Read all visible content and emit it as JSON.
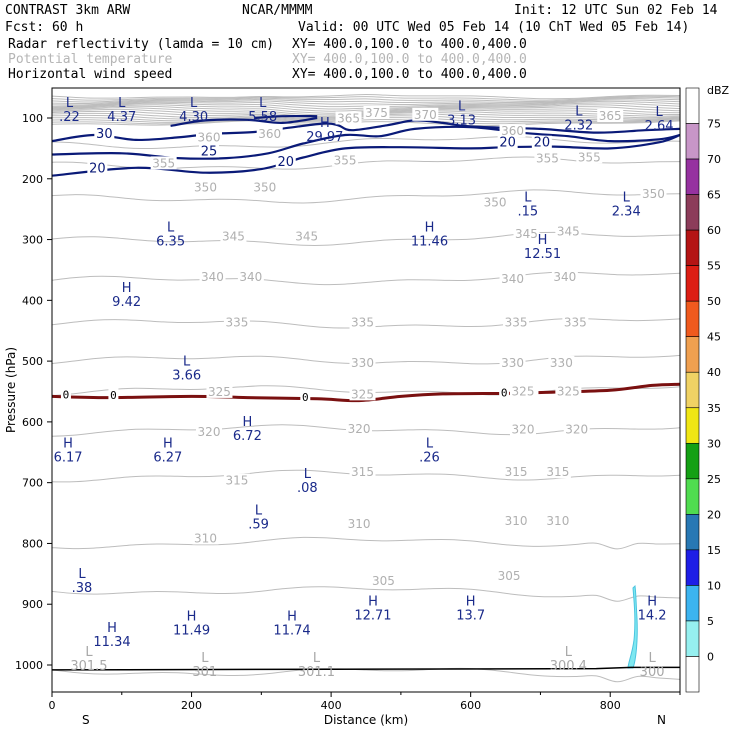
{
  "header": {
    "model": "CONTRAST  3km ARW",
    "org": "NCAR/MMMM",
    "init": "Init: 12 UTC Sun 02 Feb 14",
    "fcst": "Fcst:   60 h",
    "valid": "Valid: 00 UTC Wed 05 Feb 14 (10 ChT Wed 05 Feb 14)",
    "field1": "Radar reflectivity (lamda = 10 cm)",
    "xy1": "XY= 400.0,100.0 to 400.0,400.0",
    "field2": "Potential temperature",
    "xy2": "XY= 400.0,100.0 to 400.0,400.0",
    "field3": "Horizontal wind speed",
    "xy3": "XY= 400.0,100.0 to 400.0,400.0"
  },
  "colors": {
    "theta": "#bdbdbd",
    "wind": "#0a1a78",
    "zero_line": "#7a1010",
    "terrain": "#000000"
  },
  "chart_data": {
    "type": "cross-section",
    "xlabel": "Distance (km)",
    "ylabel": "Pressure (hPa)",
    "xlim": [
      0,
      900
    ],
    "ylim": [
      1050,
      60
    ],
    "x_ticks": [
      0,
      200,
      400,
      600,
      800
    ],
    "y_ticks": [
      100,
      200,
      300,
      400,
      500,
      600,
      700,
      800,
      900,
      1000
    ],
    "endpoint_labels": {
      "left": "S",
      "right": "N"
    },
    "colorbar": {
      "unit": "dBZ",
      "levels": [
        75,
        70,
        65,
        60,
        55,
        50,
        45,
        40,
        35,
        30,
        25,
        20,
        15,
        10,
        5,
        0
      ],
      "colors": [
        "#ffffff",
        "#c896c8",
        "#9632a0",
        "#8c3c5a",
        "#b41414",
        "#dc1e14",
        "#f05a1e",
        "#f0a050",
        "#f0d264",
        "#f0e614",
        "#14a014",
        "#50dc50",
        "#2878b4",
        "#1e1ee6",
        "#3cb4f0",
        "#96f0f0",
        "#ffffff"
      ]
    },
    "theta_levels": [
      {
        "value": 300,
        "p": 1008
      },
      {
        "value": 305,
        "p": 875
      },
      {
        "value": 310,
        "p": 800
      },
      {
        "value": 315,
        "p": 690
      },
      {
        "value": 320,
        "p": 615
      },
      {
        "value": 325,
        "p": 550
      },
      {
        "value": 330,
        "p": 500
      },
      {
        "value": 335,
        "p": 440
      },
      {
        "value": 340,
        "p": 370
      },
      {
        "value": 345,
        "p": 305
      },
      {
        "value": 350,
        "p": 235
      },
      {
        "value": 355,
        "p": 180
      },
      {
        "value": 360,
        "p": 145
      }
    ],
    "theta_labels": [
      {
        "text": "375",
        "x": 465,
        "p": 95
      },
      {
        "text": "370",
        "x": 535,
        "p": 98
      },
      {
        "text": "365",
        "x": 800,
        "p": 100
      },
      {
        "text": "365",
        "x": 425,
        "p": 104
      },
      {
        "text": "360",
        "x": 225,
        "p": 135
      },
      {
        "text": "360",
        "x": 312,
        "p": 130
      },
      {
        "text": "360",
        "x": 660,
        "p": 125
      },
      {
        "text": "355",
        "x": 160,
        "p": 178
      },
      {
        "text": "355",
        "x": 420,
        "p": 173
      },
      {
        "text": "355",
        "x": 710,
        "p": 170
      },
      {
        "text": "355",
        "x": 770,
        "p": 168
      },
      {
        "text": "350",
        "x": 220,
        "p": 218
      },
      {
        "text": "350",
        "x": 305,
        "p": 218
      },
      {
        "text": "350",
        "x": 635,
        "p": 242
      },
      {
        "text": "350",
        "x": 862,
        "p": 228
      },
      {
        "text": "345",
        "x": 260,
        "p": 298
      },
      {
        "text": "345",
        "x": 365,
        "p": 298
      },
      {
        "text": "345",
        "x": 680,
        "p": 294
      },
      {
        "text": "345",
        "x": 740,
        "p": 290
      },
      {
        "text": "340",
        "x": 230,
        "p": 365
      },
      {
        "text": "340",
        "x": 285,
        "p": 365
      },
      {
        "text": "340",
        "x": 660,
        "p": 368
      },
      {
        "text": "340",
        "x": 735,
        "p": 365
      },
      {
        "text": "335",
        "x": 265,
        "p": 440
      },
      {
        "text": "335",
        "x": 445,
        "p": 440
      },
      {
        "text": "335",
        "x": 665,
        "p": 440
      },
      {
        "text": "335",
        "x": 750,
        "p": 440
      },
      {
        "text": "330",
        "x": 445,
        "p": 506
      },
      {
        "text": "330",
        "x": 660,
        "p": 506
      },
      {
        "text": "330",
        "x": 730,
        "p": 506
      },
      {
        "text": "325",
        "x": 240,
        "p": 554
      },
      {
        "text": "325",
        "x": 445,
        "p": 558
      },
      {
        "text": "325",
        "x": 675,
        "p": 553
      },
      {
        "text": "325",
        "x": 740,
        "p": 553
      },
      {
        "text": "320",
        "x": 225,
        "p": 620
      },
      {
        "text": "320",
        "x": 440,
        "p": 615
      },
      {
        "text": "320",
        "x": 675,
        "p": 616
      },
      {
        "text": "320",
        "x": 752,
        "p": 616
      },
      {
        "text": "315",
        "x": 265,
        "p": 700
      },
      {
        "text": "315",
        "x": 445,
        "p": 686
      },
      {
        "text": "315",
        "x": 665,
        "p": 686
      },
      {
        "text": "315",
        "x": 725,
        "p": 686
      },
      {
        "text": "310",
        "x": 220,
        "p": 795
      },
      {
        "text": "310",
        "x": 440,
        "p": 771
      },
      {
        "text": "310",
        "x": 665,
        "p": 766
      },
      {
        "text": "310",
        "x": 725,
        "p": 766
      },
      {
        "text": "305",
        "x": 475,
        "p": 865
      },
      {
        "text": "305",
        "x": 655,
        "p": 857
      }
    ],
    "wind_contours": [
      {
        "value": 20,
        "points": [
          [
            0,
            195
          ],
          [
            120,
            182
          ],
          [
            220,
            190
          ],
          [
            300,
            184
          ],
          [
            360,
            165
          ],
          [
            420,
            150
          ],
          [
            500,
            148
          ],
          [
            600,
            150
          ],
          [
            650,
            148
          ],
          [
            720,
            147
          ],
          [
            800,
            150
          ],
          [
            870,
            140
          ],
          [
            900,
            128
          ]
        ]
      },
      {
        "value": 25,
        "points": [
          [
            0,
            160
          ],
          [
            100,
            158
          ],
          [
            180,
            166
          ],
          [
            250,
            166
          ],
          [
            310,
            158
          ],
          [
            360,
            142
          ],
          [
            420,
            128
          ],
          [
            470,
            130
          ],
          [
            520,
            118
          ],
          [
            600,
            115
          ],
          [
            680,
            125
          ],
          [
            740,
            130
          ],
          [
            800,
            138
          ],
          [
            870,
            135
          ],
          [
            900,
            128
          ]
        ]
      },
      {
        "value": 30,
        "points": [
          [
            0,
            138
          ],
          [
            60,
            128
          ],
          [
            120,
            136
          ],
          [
            180,
            132
          ],
          [
            230,
            126
          ],
          [
            290,
            123
          ],
          [
            340,
            116
          ],
          [
            390,
            109
          ],
          [
            410,
            112
          ],
          [
            430,
            120
          ],
          [
            480,
            112
          ],
          [
            520,
            104
          ],
          [
            560,
            108
          ],
          [
            600,
            114
          ],
          [
            700,
            118
          ],
          [
            780,
            124
          ],
          [
            850,
            120
          ],
          [
            900,
            118
          ]
        ]
      },
      {
        "value": 35,
        "points": [
          [
            170,
            113
          ],
          [
            220,
            104
          ],
          [
            280,
            103
          ],
          [
            330,
            108
          ],
          [
            380,
            100
          ]
        ]
      },
      {
        "value": 40,
        "points": [
          [
            290,
            100
          ],
          [
            330,
            97
          ],
          [
            380,
            97
          ]
        ]
      }
    ],
    "wind_labels": [
      {
        "text": "30",
        "x": 75,
        "p": 130
      },
      {
        "text": "25",
        "x": 225,
        "p": 158
      },
      {
        "text": "20",
        "x": 65,
        "p": 186
      },
      {
        "text": "20",
        "x": 335,
        "p": 176
      },
      {
        "text": "20",
        "x": 653,
        "p": 144
      },
      {
        "text": "20",
        "x": 702,
        "p": 144
      }
    ],
    "zero_line": {
      "value": 0,
      "points": [
        [
          0,
          558
        ],
        [
          80,
          560
        ],
        [
          200,
          558
        ],
        [
          280,
          560
        ],
        [
          380,
          562
        ],
        [
          440,
          565
        ],
        [
          500,
          558
        ],
        [
          560,
          554
        ],
        [
          660,
          553
        ],
        [
          720,
          551
        ],
        [
          800,
          548
        ],
        [
          860,
          540
        ],
        [
          900,
          538
        ]
      ],
      "labels": [
        {
          "text": "0",
          "x": 20,
          "p": 555
        },
        {
          "text": "0",
          "x": 88,
          "p": 556
        },
        {
          "text": "0",
          "x": 363,
          "p": 559
        },
        {
          "text": "0",
          "x": 648,
          "p": 552
        },
        {
          "text": "0",
          "x": 690,
          "p": 552
        }
      ]
    },
    "extrema": [
      {
        "sym": "L",
        "val": ".22",
        "x": 25,
        "p": 82,
        "gray": false
      },
      {
        "sym": "L",
        "val": "4.37",
        "x": 100,
        "p": 82,
        "gray": false
      },
      {
        "sym": "L",
        "val": "4.30",
        "x": 203,
        "p": 82,
        "gray": false
      },
      {
        "sym": "L",
        "val": "5.58",
        "x": 302,
        "p": 82,
        "gray": false
      },
      {
        "sym": "L",
        "val": "3.13",
        "x": 587,
        "p": 88,
        "gray": false
      },
      {
        "sym": "L",
        "val": "2.32",
        "x": 755,
        "p": 96,
        "gray": false
      },
      {
        "sym": "L",
        "val": "2.64",
        "x": 870,
        "p": 97,
        "gray": false
      },
      {
        "sym": "H",
        "val": "29.97",
        "x": 391,
        "p": 115,
        "gray": false
      },
      {
        "sym": "L",
        "val": ".15",
        "x": 682,
        "p": 237,
        "gray": false
      },
      {
        "sym": "L",
        "val": "2.34",
        "x": 823,
        "p": 237,
        "gray": false
      },
      {
        "sym": "L",
        "val": "6.35",
        "x": 170,
        "p": 287,
        "gray": false
      },
      {
        "sym": "H",
        "val": "11.46",
        "x": 541,
        "p": 287,
        "gray": false
      },
      {
        "sym": "H",
        "val": "12.51",
        "x": 703,
        "p": 307,
        "gray": false
      },
      {
        "sym": "H",
        "val": "9.42",
        "x": 107,
        "p": 386,
        "gray": false
      },
      {
        "sym": "L",
        "val": "3.66",
        "x": 193,
        "p": 507,
        "gray": false
      },
      {
        "sym": "H",
        "val": "6.72",
        "x": 280,
        "p": 607,
        "gray": false
      },
      {
        "sym": "H",
        "val": "6.17",
        "x": 23,
        "p": 642,
        "gray": false
      },
      {
        "sym": "H",
        "val": "6.27",
        "x": 166,
        "p": 642,
        "gray": false
      },
      {
        "sym": "L",
        "val": ".26",
        "x": 541,
        "p": 642,
        "gray": false
      },
      {
        "sym": "L",
        "val": ".08",
        "x": 366,
        "p": 692,
        "gray": false
      },
      {
        "sym": "L",
        "val": ".59",
        "x": 296,
        "p": 752,
        "gray": false
      },
      {
        "sym": "L",
        "val": ".38",
        "x": 43,
        "p": 857,
        "gray": false
      },
      {
        "sym": "H",
        "val": "12.71",
        "x": 460,
        "p": 902,
        "gray": false
      },
      {
        "sym": "H",
        "val": "13.7",
        "x": 600,
        "p": 902,
        "gray": false
      },
      {
        "sym": "H",
        "val": "14.2",
        "x": 860,
        "p": 902,
        "gray": false
      },
      {
        "sym": "H",
        "val": "11.49",
        "x": 200,
        "p": 927,
        "gray": false
      },
      {
        "sym": "H",
        "val": "11.74",
        "x": 344,
        "p": 927,
        "gray": false
      },
      {
        "sym": "H",
        "val": "11.34",
        "x": 86,
        "p": 946,
        "gray": false
      },
      {
        "sym": "L",
        "val": "301.5",
        "x": 53,
        "p": 985,
        "gray": true
      },
      {
        "sym": "L",
        "val": "301",
        "x": 219,
        "p": 995,
        "gray": true
      },
      {
        "sym": "L",
        "val": "301.1",
        "x": 379,
        "p": 995,
        "gray": true
      },
      {
        "sym": "L",
        "val": "300.4",
        "x": 740,
        "p": 985,
        "gray": true
      },
      {
        "sym": "L",
        "val": "300",
        "x": 860,
        "p": 995,
        "gray": true
      }
    ]
  }
}
